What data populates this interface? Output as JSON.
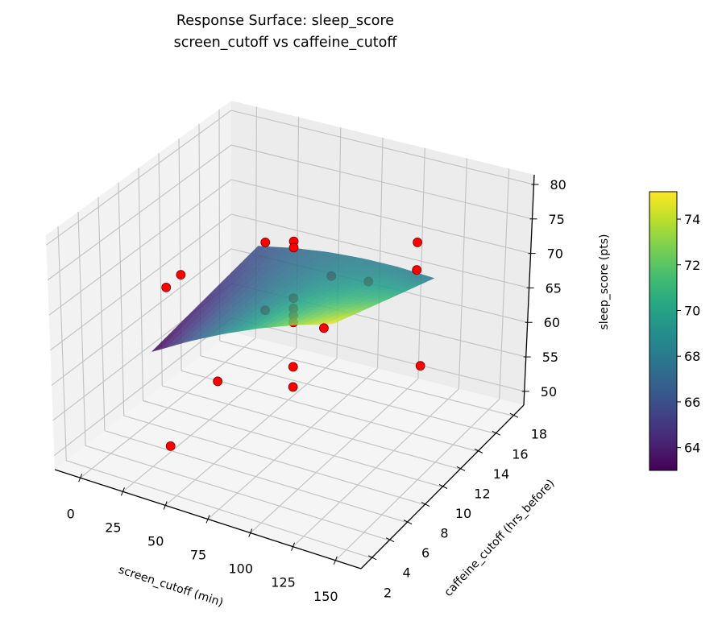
{
  "chart_data": {
    "type": "surface",
    "title": "Response Surface: sleep_score",
    "subtitle": "screen_cutoff vs caffeine_cutoff",
    "xlabel": "screen_cutoff (min)",
    "ylabel": "caffeine_cutoff (hrs_before)",
    "zlabel": "sleep_score (pts)",
    "xlim": [
      -15,
      165
    ],
    "ylim": [
      0.8,
      19.2
    ],
    "zlim": [
      48.0,
      81.4
    ],
    "xticks": [
      0,
      25,
      50,
      75,
      100,
      125,
      150
    ],
    "yticks": [
      2,
      4,
      6,
      8,
      10,
      12,
      14,
      16,
      18
    ],
    "zticks": [
      50,
      55,
      60,
      65,
      70,
      75,
      80
    ],
    "grid": true,
    "surface": {
      "colormap": "viridis",
      "x": [
        20,
        41,
        62,
        83,
        104,
        125
      ],
      "y": [
        5,
        7.2,
        9.4,
        11.6,
        13.8,
        16
      ],
      "z": [
        [
          63.0,
          66.04,
          68.76,
          71.16,
          73.24,
          75.0
        ],
        [
          63.6,
          66.24,
          68.56,
          70.56,
          72.24,
          73.6
        ],
        [
          64.2,
          66.44,
          68.36,
          69.96,
          71.24,
          72.2
        ],
        [
          64.8,
          66.64,
          68.16,
          69.36,
          70.24,
          70.8
        ],
        [
          65.4,
          66.84,
          67.96,
          68.76,
          69.24,
          69.4
        ],
        [
          66.0,
          67.04,
          67.76,
          68.16,
          68.24,
          68.0
        ]
      ]
    },
    "points": {
      "color": "#ff0000",
      "x": [
        75,
        75,
        75,
        75,
        75,
        75,
        75,
        75,
        75,
        75,
        0,
        150,
        30,
        120,
        30,
        30,
        120,
        120,
        75,
        0
      ],
      "y": [
        10,
        10,
        10,
        10,
        10,
        10,
        10,
        10,
        2,
        18,
        10,
        10,
        5,
        5,
        15,
        15,
        15,
        15,
        14,
        11.5
      ],
      "z": [
        77.2,
        76.3,
        69.0,
        67.5,
        66.5,
        65.5,
        59.1,
        56.2,
        66.4,
        62.0,
        65.3,
        64.5,
        50.2,
        74.0,
        68.3,
        58.5,
        74.1,
        70.1,
        67.5,
        65.5
      ]
    },
    "colorbar": {
      "colormap": "viridis",
      "range": [
        63.0,
        75.2
      ],
      "ticks": [
        64,
        66,
        68,
        70,
        72,
        74
      ]
    }
  }
}
